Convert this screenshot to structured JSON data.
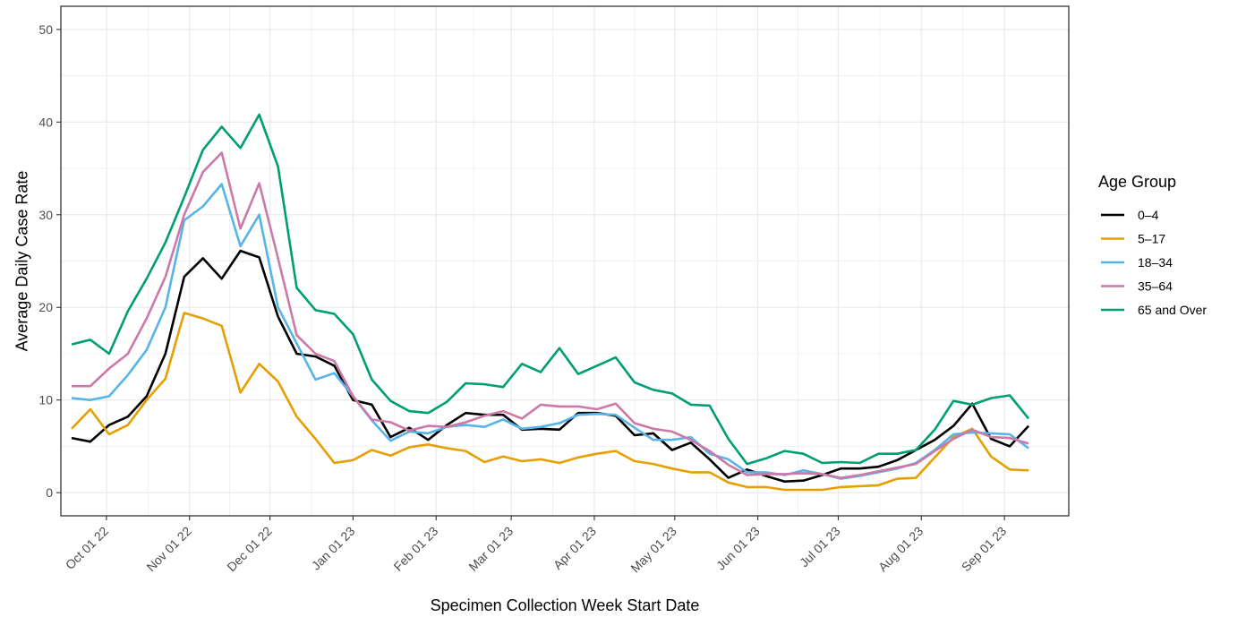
{
  "chart_data": {
    "type": "line",
    "title": "",
    "xlabel": "Specimen Collection Week Start Date",
    "ylabel": "Average Daily Case Rate",
    "ylim": [
      -2.5,
      52.5
    ],
    "y_ticks": [
      0,
      10,
      20,
      30,
      40,
      50
    ],
    "x_range": [
      "2022-09-14",
      "2023-09-25"
    ],
    "x_ticks": [
      {
        "date": "2022-10-01",
        "label": "Oct 01 22"
      },
      {
        "date": "2022-11-01",
        "label": "Nov 01 22"
      },
      {
        "date": "2022-12-01",
        "label": "Dec 01 22"
      },
      {
        "date": "2023-01-01",
        "label": "Jan 01 23"
      },
      {
        "date": "2023-02-01",
        "label": "Feb 01 23"
      },
      {
        "date": "2023-03-01",
        "label": "Mar 01 23"
      },
      {
        "date": "2023-04-01",
        "label": "Apr 01 23"
      },
      {
        "date": "2023-05-01",
        "label": "May 01 23"
      },
      {
        "date": "2023-06-01",
        "label": "Jun 01 23"
      },
      {
        "date": "2023-07-01",
        "label": "Jul 01 23"
      },
      {
        "date": "2023-08-01",
        "label": "Aug 01 23"
      },
      {
        "date": "2023-09-01",
        "label": "Sep 01 23"
      }
    ],
    "grid": true,
    "legend_title": "Age Group",
    "legend_position": "right",
    "x": [
      "2022-09-18",
      "2022-09-25",
      "2022-10-02",
      "2022-10-09",
      "2022-10-16",
      "2022-10-23",
      "2022-10-30",
      "2022-11-06",
      "2022-11-13",
      "2022-11-20",
      "2022-11-27",
      "2022-12-04",
      "2022-12-11",
      "2022-12-18",
      "2022-12-25",
      "2023-01-01",
      "2023-01-08",
      "2023-01-15",
      "2023-01-22",
      "2023-01-29",
      "2023-02-05",
      "2023-02-12",
      "2023-02-19",
      "2023-02-26",
      "2023-03-05",
      "2023-03-12",
      "2023-03-19",
      "2023-03-26",
      "2023-04-02",
      "2023-04-09",
      "2023-04-16",
      "2023-04-23",
      "2023-04-30",
      "2023-05-07",
      "2023-05-14",
      "2023-05-21",
      "2023-05-28",
      "2023-06-04",
      "2023-06-11",
      "2023-06-18",
      "2023-06-25",
      "2023-07-02",
      "2023-07-09",
      "2023-07-16",
      "2023-07-23",
      "2023-07-30",
      "2023-08-06",
      "2023-08-13",
      "2023-08-20",
      "2023-08-27",
      "2023-09-03",
      "2023-09-10"
    ],
    "series": [
      {
        "name": "0–4",
        "color": "#000000",
        "values": [
          5.9,
          5.5,
          7.3,
          8.2,
          10.4,
          15.0,
          23.3,
          25.3,
          23.1,
          26.1,
          25.4,
          19.0,
          15.0,
          14.7,
          13.7,
          10.0,
          9.5,
          6.0,
          7.0,
          5.7,
          7.3,
          8.6,
          8.4,
          8.4,
          6.8,
          6.9,
          6.8,
          8.6,
          8.6,
          8.3,
          6.2,
          6.4,
          4.6,
          5.4,
          3.6,
          1.6,
          2.5,
          1.8,
          1.2,
          1.3,
          1.9,
          2.6,
          2.6,
          2.8,
          3.5,
          4.6,
          5.7,
          7.2,
          9.6,
          5.8,
          5.0,
          7.2
        ]
      },
      {
        "name": "5–17",
        "color": "#E69F00",
        "values": [
          6.9,
          9.0,
          6.3,
          7.3,
          10.0,
          12.3,
          19.4,
          18.8,
          18.0,
          10.8,
          13.9,
          12.0,
          8.2,
          5.8,
          3.2,
          3.5,
          4.6,
          4.0,
          4.9,
          5.2,
          4.8,
          4.5,
          3.3,
          3.9,
          3.4,
          3.6,
          3.2,
          3.8,
          4.2,
          4.5,
          3.4,
          3.1,
          2.6,
          2.2,
          2.2,
          1.1,
          0.6,
          0.6,
          0.3,
          0.3,
          0.3,
          0.6,
          0.7,
          0.8,
          1.5,
          1.6,
          3.8,
          6.0,
          6.9,
          3.9,
          2.5,
          2.4
        ]
      },
      {
        "name": "18–34",
        "color": "#56B4E9",
        "values": [
          10.2,
          10.0,
          10.4,
          12.7,
          15.4,
          20.0,
          29.4,
          30.9,
          33.3,
          26.6,
          30.0,
          20.0,
          16.1,
          12.2,
          12.9,
          10.4,
          7.8,
          5.6,
          6.6,
          6.4,
          7.1,
          7.3,
          7.1,
          7.9,
          6.9,
          7.1,
          7.5,
          8.4,
          8.5,
          8.4,
          7.0,
          5.7,
          5.7,
          6.0,
          4.2,
          3.6,
          2.2,
          2.2,
          1.9,
          2.4,
          2.0,
          1.5,
          1.8,
          2.2,
          2.6,
          3.2,
          4.6,
          6.3,
          6.5,
          6.4,
          6.3,
          4.8
        ]
      },
      {
        "name": "35–64",
        "color": "#CC79A7",
        "values": [
          11.5,
          11.5,
          13.4,
          15.0,
          18.8,
          23.3,
          30.0,
          34.6,
          36.7,
          28.5,
          33.4,
          25.3,
          17.0,
          15.0,
          14.2,
          10.4,
          7.9,
          7.6,
          6.7,
          7.2,
          7.1,
          7.6,
          8.3,
          8.8,
          8.0,
          9.5,
          9.3,
          9.3,
          9.0,
          9.6,
          7.5,
          6.9,
          6.6,
          5.7,
          4.5,
          3.0,
          1.9,
          2.0,
          2.0,
          2.1,
          2.0,
          1.6,
          1.9,
          2.3,
          2.7,
          3.1,
          4.5,
          5.8,
          6.8,
          6.0,
          5.9,
          5.3
        ]
      },
      {
        "name": "65 and Over",
        "color": "#009E73",
        "values": [
          16.0,
          16.5,
          15.0,
          19.6,
          23.1,
          27.0,
          31.9,
          37.0,
          39.5,
          37.2,
          40.8,
          35.2,
          22.1,
          19.7,
          19.3,
          17.1,
          12.2,
          9.9,
          8.8,
          8.6,
          9.8,
          11.8,
          11.7,
          11.4,
          13.9,
          13.0,
          15.6,
          12.8,
          13.7,
          14.6,
          11.9,
          11.1,
          10.7,
          9.5,
          9.4,
          5.8,
          3.1,
          3.7,
          4.5,
          4.2,
          3.2,
          3.3,
          3.2,
          4.2,
          4.2,
          4.6,
          6.8,
          9.9,
          9.5,
          10.2,
          10.5,
          8.0
        ]
      }
    ]
  }
}
